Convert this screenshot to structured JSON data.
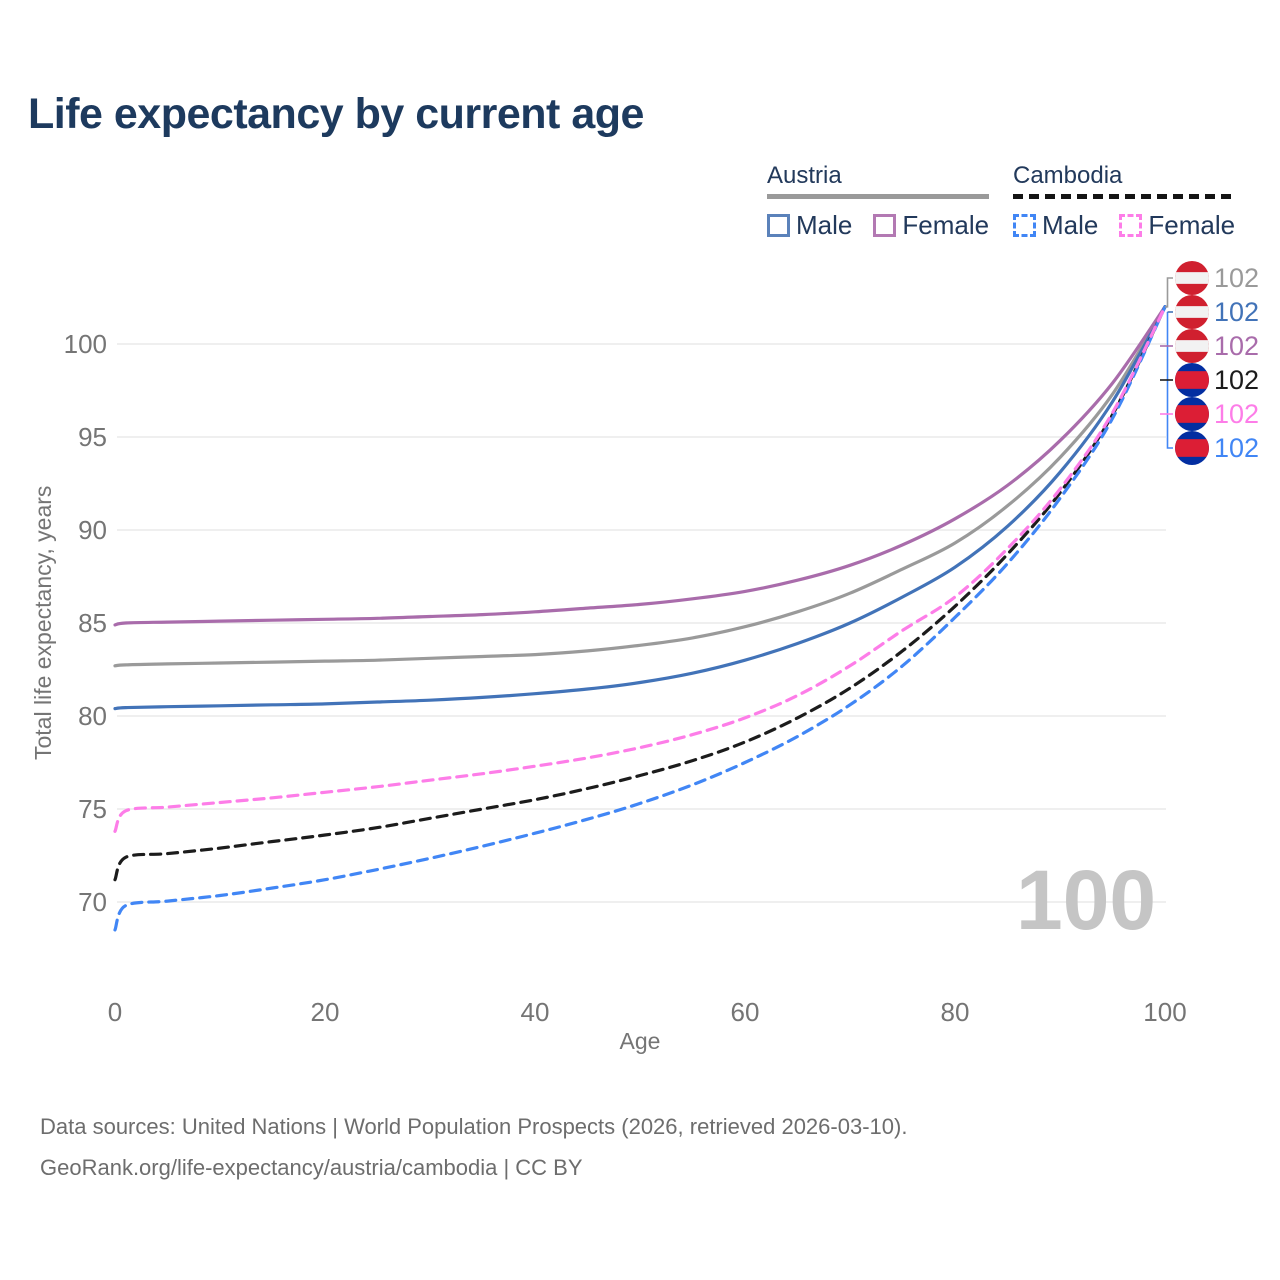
{
  "header": {
    "title": "Life expectancy by current age"
  },
  "legend": {
    "groups": [
      {
        "country": "Austria",
        "line_style": "solid",
        "underline_color": "#9a9a9a",
        "items": [
          {
            "label": "Male",
            "color": "#5b82ba"
          },
          {
            "label": "Female",
            "color": "#b379b3"
          }
        ]
      },
      {
        "country": "Cambodia",
        "line_style": "dashed",
        "underline_color": "#141414",
        "items": [
          {
            "label": "Male",
            "color": "#4186f5"
          },
          {
            "label": "Female",
            "color": "#fd7de8"
          }
        ]
      }
    ]
  },
  "chart_data": {
    "type": "line",
    "title": "Life expectancy by current age",
    "xlabel": "Age",
    "ylabel": "Total life expectancy, years",
    "xlim": [
      0,
      100
    ],
    "ylim": [
      68,
      103
    ],
    "xticks": [
      0,
      20,
      40,
      60,
      80,
      100
    ],
    "yticks": [
      70,
      75,
      80,
      85,
      90,
      95,
      100
    ],
    "grid": true,
    "legend_position": "top-right",
    "watermark": "100",
    "x": [
      0,
      1,
      5,
      10,
      15,
      20,
      25,
      30,
      35,
      40,
      45,
      50,
      55,
      60,
      65,
      70,
      75,
      80,
      85,
      90,
      95,
      100
    ],
    "series": [
      {
        "name": "Austria",
        "country": "Austria",
        "sex": "Both",
        "line": "solid",
        "color": "#9a9a9a",
        "end_value": 102,
        "values": [
          82.7,
          82.75,
          82.8,
          82.85,
          82.9,
          82.95,
          83.0,
          83.1,
          83.2,
          83.3,
          83.5,
          83.8,
          84.2,
          84.8,
          85.6,
          86.6,
          87.9,
          89.3,
          91.3,
          93.9,
          97.3,
          102
        ]
      },
      {
        "name": "Austria Male",
        "country": "Austria",
        "sex": "Male",
        "line": "solid",
        "color": "#4273b8",
        "end_value": 102,
        "values": [
          80.4,
          80.45,
          80.5,
          80.55,
          80.6,
          80.65,
          80.75,
          80.85,
          81.0,
          81.2,
          81.45,
          81.8,
          82.3,
          83.0,
          83.9,
          85.0,
          86.4,
          88.0,
          90.2,
          93.1,
          96.9,
          102
        ]
      },
      {
        "name": "Austria Female",
        "country": "Austria",
        "sex": "Female",
        "line": "solid",
        "color": "#a96cab",
        "end_value": 102,
        "values": [
          84.9,
          85.0,
          85.05,
          85.1,
          85.15,
          85.2,
          85.25,
          85.35,
          85.45,
          85.6,
          85.8,
          86.0,
          86.3,
          86.7,
          87.3,
          88.1,
          89.2,
          90.6,
          92.4,
          94.8,
          97.9,
          102
        ]
      },
      {
        "name": "Cambodia",
        "country": "Cambodia",
        "sex": "Both",
        "line": "dashed",
        "color": "#1c1c1c",
        "end_value": 102,
        "values": [
          71.2,
          72.4,
          72.6,
          72.9,
          73.25,
          73.6,
          74.0,
          74.5,
          75.0,
          75.5,
          76.1,
          76.8,
          77.6,
          78.6,
          79.9,
          81.5,
          83.5,
          85.9,
          88.7,
          92.0,
          96.2,
          102
        ]
      },
      {
        "name": "Cambodia Female",
        "country": "Cambodia",
        "sex": "Female",
        "line": "dashed",
        "color": "#fd7de8",
        "end_value": 102,
        "values": [
          73.8,
          74.9,
          75.1,
          75.35,
          75.6,
          75.9,
          76.2,
          76.55,
          76.9,
          77.3,
          77.75,
          78.3,
          79.0,
          79.9,
          81.1,
          82.7,
          84.6,
          86.4,
          89.0,
          92.2,
          96.3,
          102
        ]
      },
      {
        "name": "Cambodia Male",
        "country": "Cambodia",
        "sex": "Male",
        "line": "dashed",
        "color": "#4186f5",
        "end_value": 102,
        "values": [
          68.5,
          69.8,
          70.05,
          70.35,
          70.75,
          71.2,
          71.75,
          72.35,
          73.0,
          73.7,
          74.45,
          75.3,
          76.3,
          77.5,
          78.9,
          80.6,
          82.7,
          85.3,
          88.2,
          91.7,
          96.0,
          102
        ]
      }
    ],
    "end_labels": [
      {
        "series": "Austria",
        "flag": "austria-flag-icon",
        "color": "#9a9a9a",
        "value": "102"
      },
      {
        "series": "Austria Male",
        "flag": "austria-flag-icon",
        "color": "#4273b8",
        "value": "102"
      },
      {
        "series": "Austria Female",
        "flag": "austria-flag-icon",
        "color": "#a96cab",
        "value": "102"
      },
      {
        "series": "Cambodia",
        "flag": "cambodia-flag-icon",
        "color": "#1c1c1c",
        "value": "102"
      },
      {
        "series": "Cambodia Female",
        "flag": "cambodia-flag-icon",
        "color": "#fd7de8",
        "value": "102"
      },
      {
        "series": "Cambodia Male",
        "flag": "cambodia-flag-icon",
        "color": "#4186f5",
        "value": "102"
      }
    ],
    "flag_colors": {
      "austria_red": "#d0202f",
      "austria_white": "#f2f2f2",
      "cambodia_blue": "#032ea1",
      "cambodia_red": "#dc1e35",
      "temple_white": "#ffffff"
    },
    "gridline_color": "#eaeaea",
    "tick_color": "#757575"
  },
  "footer": {
    "line1": "Data sources: United Nations | World Population Prospects (2026, retrieved 2026-03-10).",
    "line2": "GeoRank.org/life-expectancy/austria/cambodia | CC BY"
  }
}
